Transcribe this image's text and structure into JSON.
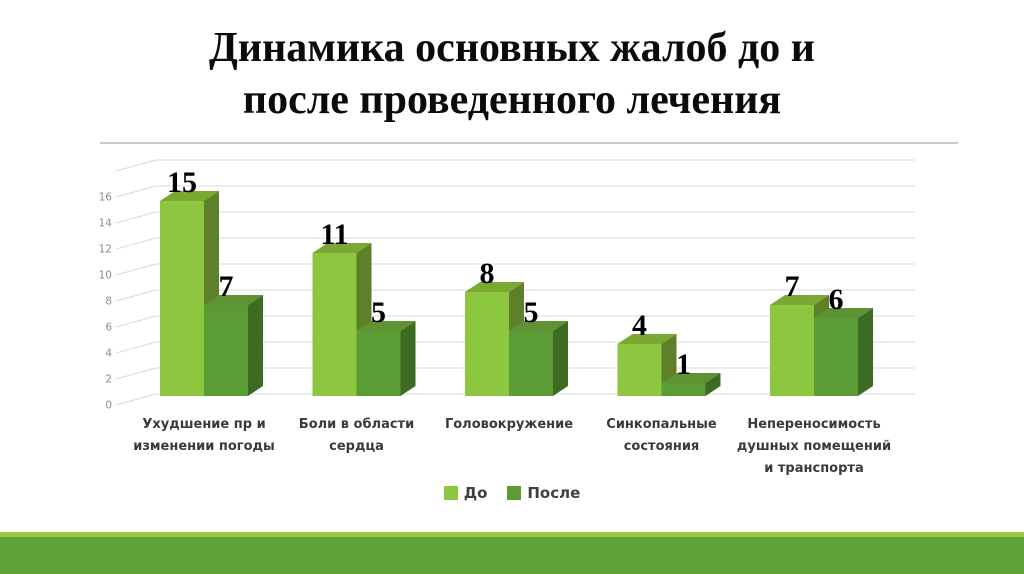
{
  "page": {
    "background": "#FFFFFF"
  },
  "header": {
    "title": "Динамика основных жалоб до и\nпосле проведенного лечения",
    "title_color": "#0B0B0B",
    "divider_color": "#C9C9C9"
  },
  "chart_data": {
    "type": "bar",
    "style": "3d-clustered-column",
    "title": "Динамика основных жалоб до и после проведенного лечения",
    "categories": [
      "Ухудшение пр и\nизменении погоды",
      "Боли в области\nсердца",
      "Головокружение",
      "Синкопальные\nсостояния",
      "Непереносимость\nдушных помещений\nи транспорта"
    ],
    "series": [
      {
        "name": "До",
        "values": [
          15,
          11,
          8,
          4,
          7
        ],
        "colors": {
          "front": "#8DC63F",
          "top": "#7AA833",
          "side": "#5E8028"
        }
      },
      {
        "name": "После",
        "values": [
          7,
          5,
          5,
          1,
          6
        ],
        "colors": {
          "front": "#5B9C35",
          "top": "#5E9233",
          "side": "#3E6B23"
        }
      }
    ],
    "ylim": [
      0,
      18
    ],
    "yticks": [
      0,
      2,
      4,
      6,
      8,
      10,
      12,
      14,
      16
    ],
    "grid": true,
    "legend_position": "bottom",
    "gridline_color": "#D9D9D9",
    "tick_color": "#8C8C8C",
    "value_label_color": "#000000",
    "category_label_color": "#3A3A3A"
  },
  "footer": {
    "strip_color": "#9CC83F",
    "band_color": "#60A437"
  }
}
